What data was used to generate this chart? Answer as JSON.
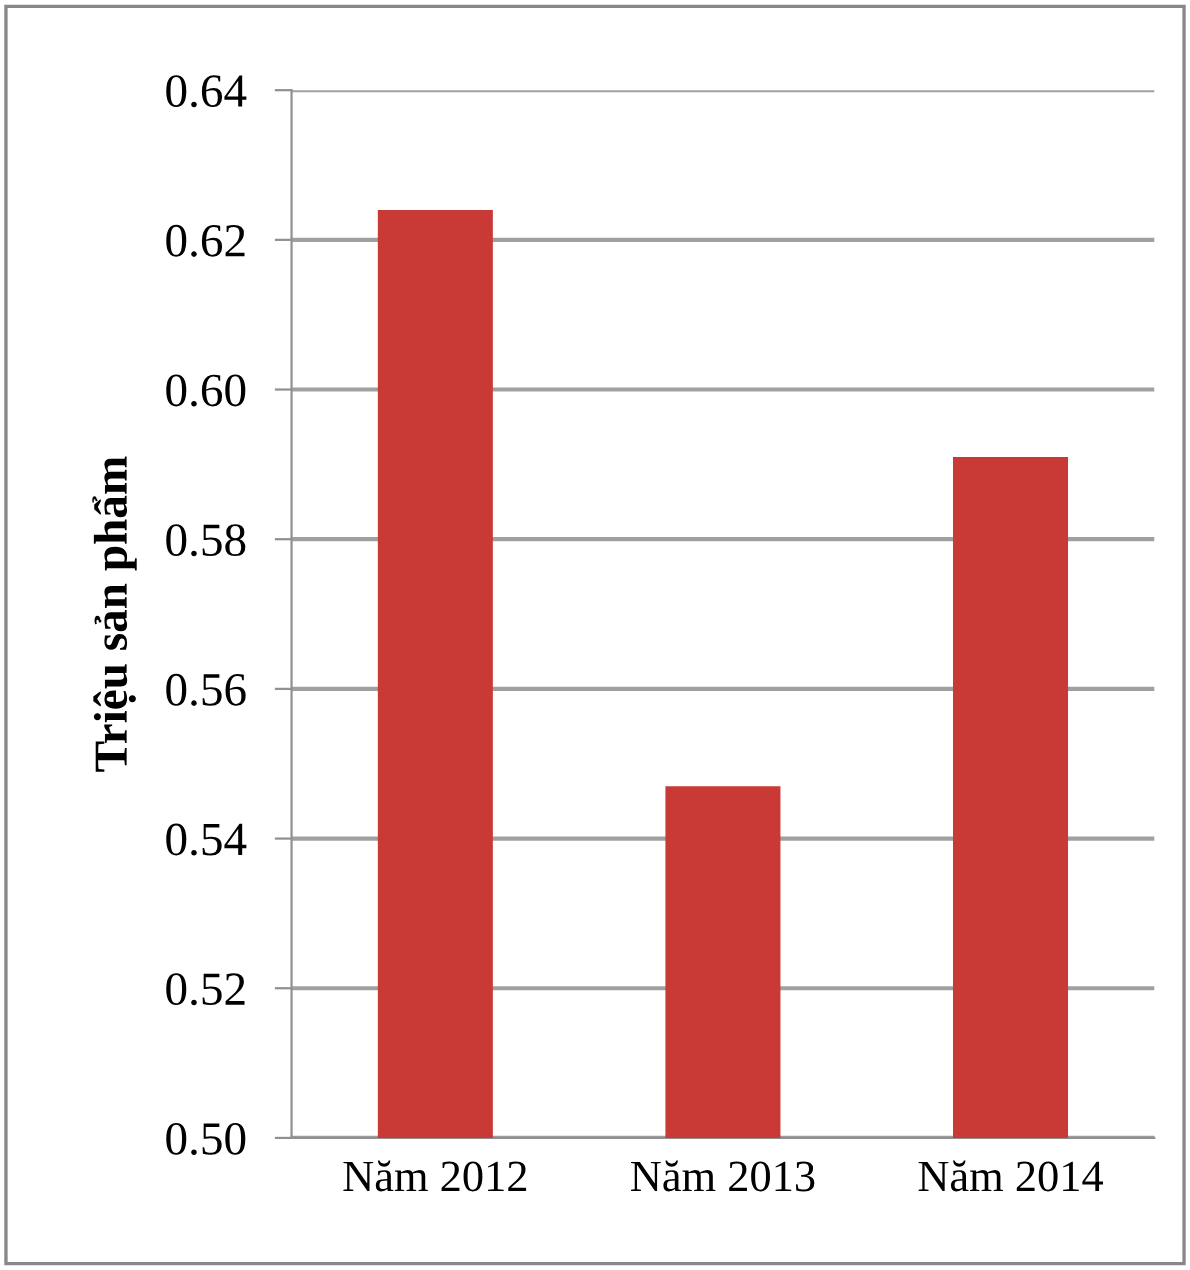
{
  "chart_data": {
    "type": "bar",
    "ylabel": "Triệu sản phẩm",
    "categories": [
      "Năm 2012",
      "Năm 2013",
      "Năm 2014"
    ],
    "values": [
      0.624,
      0.547,
      0.591
    ],
    "color": "#c93a36",
    "ylim": [
      0.5,
      0.64
    ],
    "yticks": [
      {
        "value": 0.5,
        "label": "0.50"
      },
      {
        "value": 0.52,
        "label": "0.52"
      },
      {
        "value": 0.54,
        "label": "0.54"
      },
      {
        "value": 0.56,
        "label": "0.56"
      },
      {
        "value": 0.58,
        "label": "0.58"
      },
      {
        "value": 0.6,
        "label": "0.60"
      },
      {
        "value": 0.62,
        "label": "0.62"
      },
      {
        "value": 0.64,
        "label": "0.64"
      }
    ],
    "grid": "y",
    "legend": false
  }
}
